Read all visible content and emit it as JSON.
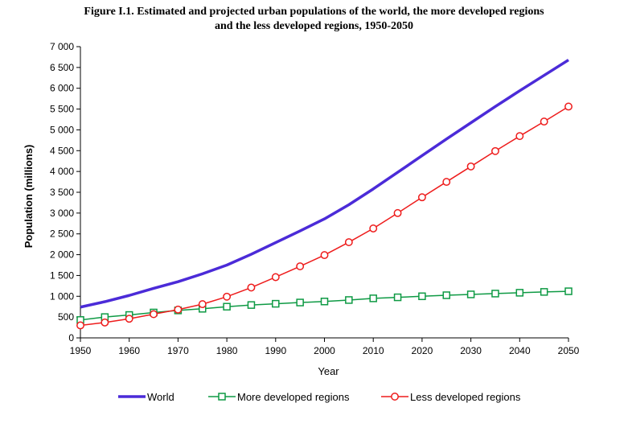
{
  "chart_data": {
    "type": "line",
    "title_line1": "Figure I.1. Estimated and projected urban populations of the world, the more developed regions",
    "title_line2": "and the less developed regions, 1950-2050",
    "xlabel": "Year",
    "ylabel": "Population (millions)",
    "ylim": [
      0,
      7000
    ],
    "xlim": [
      1950,
      2050
    ],
    "x_ticks": [
      1950,
      1960,
      1970,
      1980,
      1990,
      2000,
      2010,
      2020,
      2030,
      2040,
      2050
    ],
    "y_ticks": [
      {
        "value": 0,
        "label": "0"
      },
      {
        "value": 500,
        "label": "500"
      },
      {
        "value": 1000,
        "label": "1 000"
      },
      {
        "value": 1500,
        "label": "1 500"
      },
      {
        "value": 2000,
        "label": "2 000"
      },
      {
        "value": 2500,
        "label": "2 500"
      },
      {
        "value": 3000,
        "label": "3 000"
      },
      {
        "value": 3500,
        "label": "3 500"
      },
      {
        "value": 4000,
        "label": "4 000"
      },
      {
        "value": 4500,
        "label": "4 500"
      },
      {
        "value": 5000,
        "label": "5 000"
      },
      {
        "value": 5500,
        "label": "5 500"
      },
      {
        "value": 6000,
        "label": "6 000"
      },
      {
        "value": 6500,
        "label": "6 500"
      },
      {
        "value": 7000,
        "label": "7 000"
      }
    ],
    "grid": false,
    "legend_position": "bottom",
    "x": [
      1950,
      1955,
      1960,
      1965,
      1970,
      1975,
      1980,
      1985,
      1990,
      1995,
      2000,
      2005,
      2010,
      2015,
      2020,
      2025,
      2030,
      2035,
      2040,
      2045,
      2050
    ],
    "series": [
      {
        "name": "World",
        "color": "#4b2bd8",
        "marker": "none",
        "values": [
          740,
          870,
          1020,
          1190,
          1350,
          1540,
          1750,
          2010,
          2290,
          2570,
          2860,
          3200,
          3580,
          3980,
          4380,
          4780,
          5170,
          5560,
          5940,
          6310,
          6680
        ]
      },
      {
        "name": "More developed regions",
        "color": "#0e9a44",
        "marker": "square",
        "values": [
          430,
          500,
          550,
          610,
          660,
          700,
          750,
          790,
          820,
          850,
          875,
          910,
          950,
          975,
          1000,
          1025,
          1045,
          1065,
          1085,
          1105,
          1120
        ]
      },
      {
        "name": "Less developed regions",
        "color": "#ee1c1c",
        "marker": "circle",
        "values": [
          300,
          370,
          460,
          570,
          680,
          810,
          990,
          1210,
          1460,
          1720,
          1990,
          2300,
          2630,
          3000,
          3380,
          3750,
          4120,
          4490,
          4850,
          5200,
          5560
        ]
      }
    ]
  }
}
